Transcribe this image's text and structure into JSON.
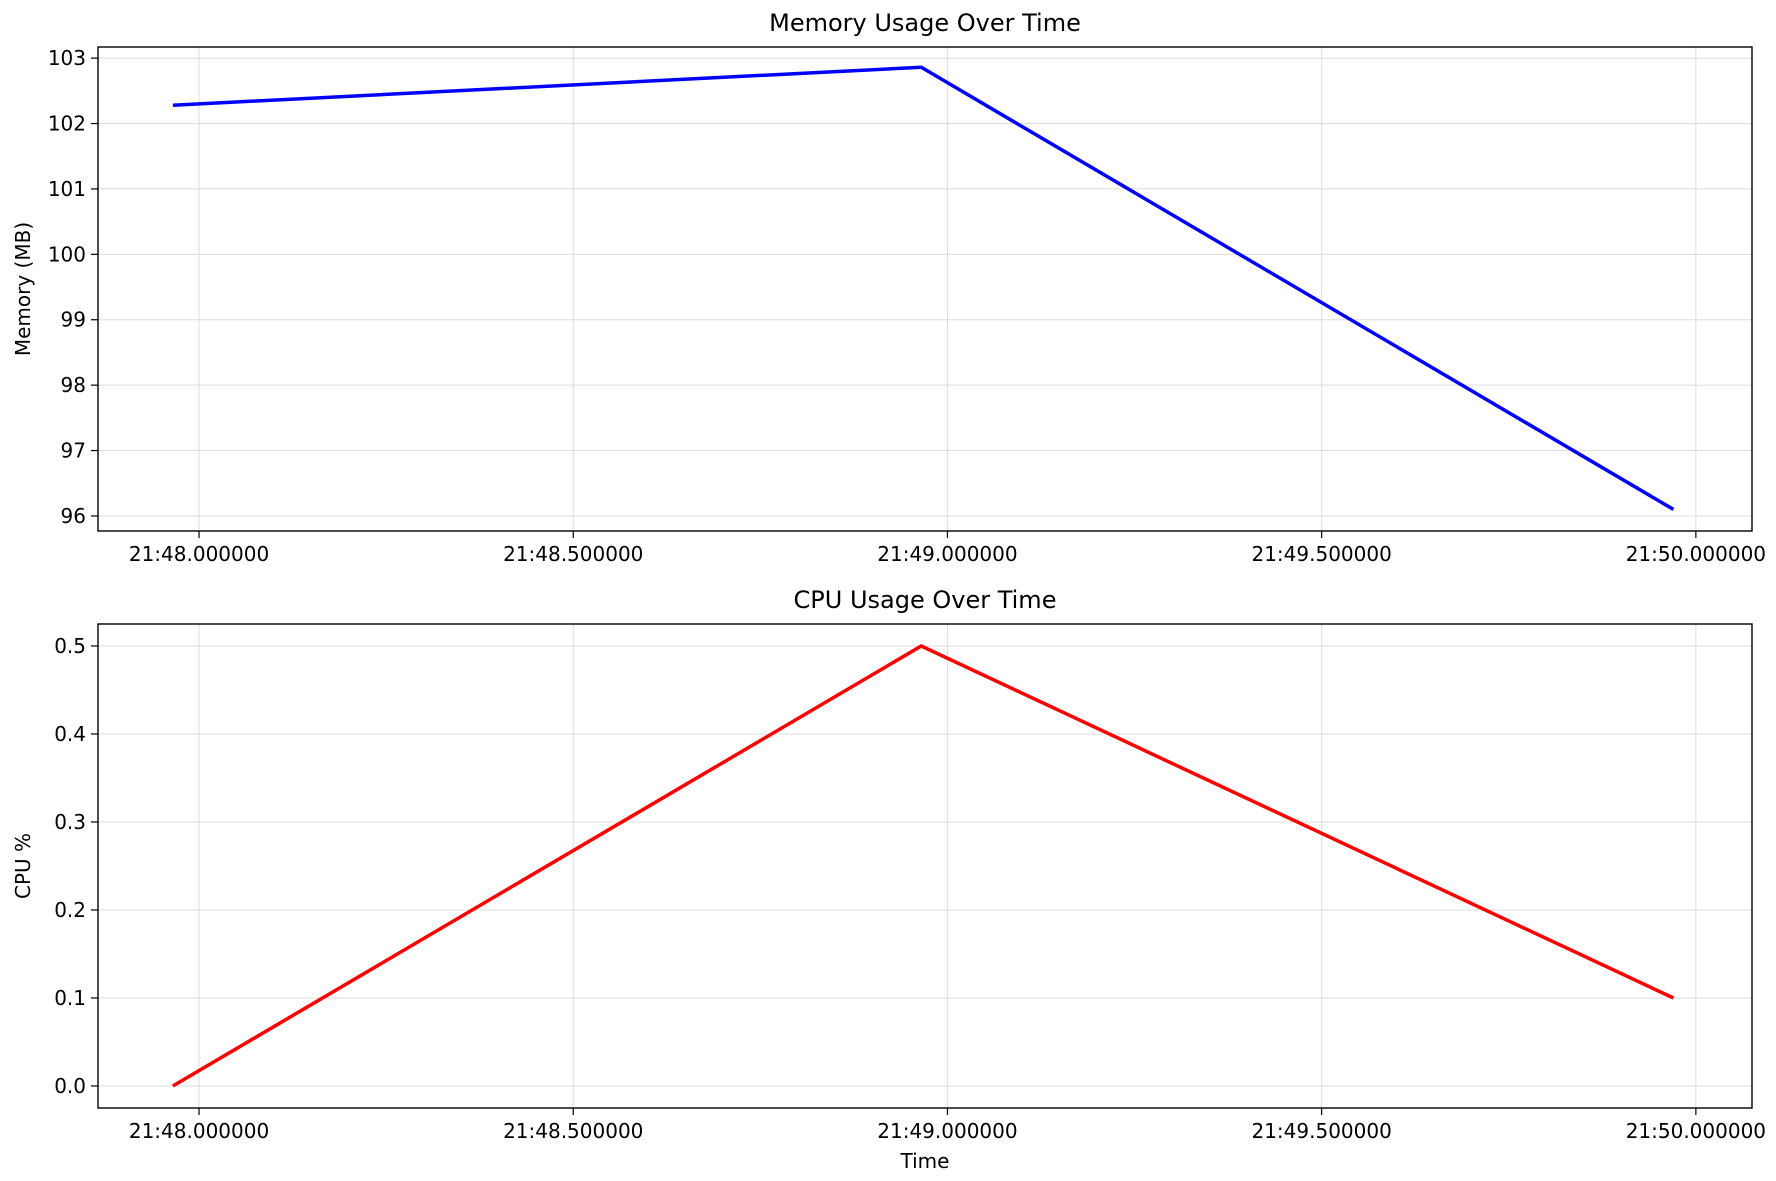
{
  "chart_data": [
    {
      "type": "line",
      "title": "Memory Usage Over Time",
      "xlabel": "",
      "ylabel": "Memory (MB)",
      "x_ticks": [
        "21:48.000000",
        "21:48.500000",
        "21:49.000000",
        "21:49.500000",
        "21:50.000000"
      ],
      "x_tick_seconds": [
        0,
        0.5,
        1.0,
        1.5,
        2.0
      ],
      "xlim_seconds": [
        -0.135,
        2.075
      ],
      "y_ticks": [
        96,
        97,
        98,
        99,
        100,
        101,
        102,
        103
      ],
      "ylim": [
        95.77,
        103.17
      ],
      "grid": true,
      "series": [
        {
          "color": "#0000ff",
          "x_seconds": [
            -0.035,
            0.965,
            1.97
          ],
          "values": [
            102.28,
            102.86,
            96.1
          ]
        }
      ]
    },
    {
      "type": "line",
      "title": "CPU Usage Over Time",
      "xlabel": "Time",
      "ylabel": "CPU %",
      "x_ticks": [
        "21:48.000000",
        "21:48.500000",
        "21:49.000000",
        "21:49.500000",
        "21:50.000000"
      ],
      "x_tick_seconds": [
        0,
        0.5,
        1.0,
        1.5,
        2.0
      ],
      "xlim_seconds": [
        -0.135,
        2.075
      ],
      "y_ticks": [
        0.0,
        0.1,
        0.2,
        0.3,
        0.4,
        0.5
      ],
      "y_tick_labels": [
        "0.0",
        "0.1",
        "0.2",
        "0.3",
        "0.4",
        "0.5"
      ],
      "ylim": [
        -0.025,
        0.525
      ],
      "grid": true,
      "series": [
        {
          "color": "#ff0000",
          "x_seconds": [
            -0.035,
            0.965,
            1.97
          ],
          "values": [
            0.0,
            0.5,
            0.1
          ]
        }
      ]
    }
  ]
}
